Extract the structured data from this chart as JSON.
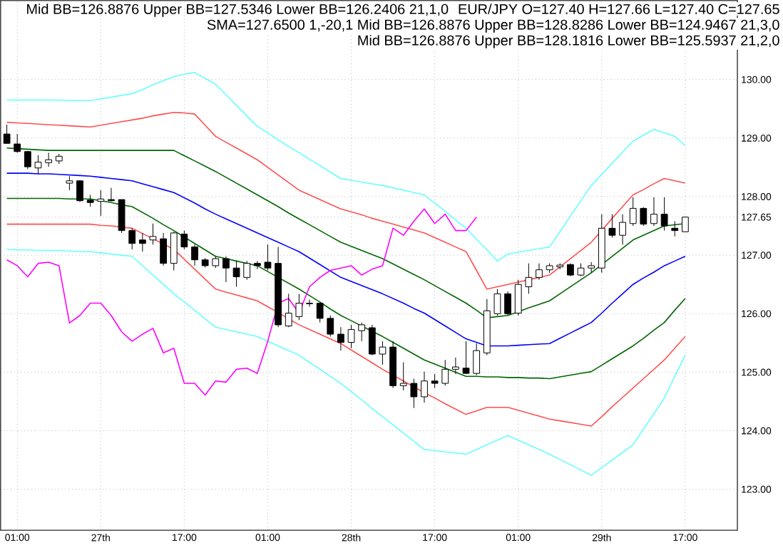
{
  "chart_data": {
    "type": "candlestick",
    "categories": [
      null,
      "01:00",
      null,
      null,
      null,
      null,
      null,
      null,
      null,
      "27th",
      null,
      null,
      null,
      null,
      null,
      null,
      null,
      "17:00",
      null,
      null,
      null,
      null,
      null,
      null,
      null,
      "01:00",
      null,
      null,
      null,
      null,
      null,
      null,
      null,
      "28th",
      null,
      null,
      null,
      null,
      null,
      null,
      null,
      "17:00",
      null,
      null,
      null,
      null,
      null,
      null,
      null,
      "01:00",
      null,
      null,
      null,
      null,
      null,
      null,
      null,
      "29th",
      null,
      null,
      null,
      null,
      null,
      null,
      null,
      "17:00"
    ],
    "ohlc": [
      [
        129.07,
        129.23,
        128.91,
        128.91
      ],
      [
        128.9,
        129.07,
        128.75,
        128.77
      ],
      [
        128.77,
        128.78,
        128.47,
        128.51
      ],
      [
        128.49,
        128.71,
        128.39,
        128.59
      ],
      [
        128.58,
        128.75,
        128.51,
        128.63
      ],
      [
        128.61,
        128.73,
        128.56,
        128.69
      ],
      [
        128.23,
        128.35,
        128.11,
        128.27
      ],
      [
        128.27,
        128.28,
        127.91,
        127.93
      ],
      [
        127.94,
        128.03,
        127.83,
        127.9
      ],
      [
        127.92,
        128.11,
        127.67,
        127.96
      ],
      [
        127.95,
        128.15,
        127.92,
        127.93
      ],
      [
        127.95,
        127.95,
        127.38,
        127.42
      ],
      [
        127.42,
        127.46,
        127.1,
        127.2
      ],
      [
        127.26,
        127.38,
        127.06,
        127.2
      ],
      [
        127.26,
        127.54,
        127.18,
        127.32
      ],
      [
        127.28,
        127.38,
        126.82,
        126.86
      ],
      [
        126.86,
        127.4,
        126.74,
        127.38
      ],
      [
        127.36,
        127.42,
        127.1,
        127.14
      ],
      [
        127.14,
        127.18,
        126.82,
        126.92
      ],
      [
        126.92,
        126.95,
        126.79,
        126.82
      ],
      [
        126.82,
        126.98,
        126.78,
        126.94
      ],
      [
        126.94,
        126.98,
        126.54,
        126.78
      ],
      [
        126.78,
        126.9,
        126.46,
        126.63
      ],
      [
        126.62,
        126.9,
        126.58,
        126.86
      ],
      [
        126.86,
        126.9,
        126.76,
        126.82
      ],
      [
        126.88,
        127.18,
        126.74,
        126.78
      ],
      [
        126.86,
        127.14,
        125.77,
        125.81
      ],
      [
        125.79,
        126.34,
        125.77,
        126.01
      ],
      [
        125.95,
        126.34,
        125.89,
        126.18
      ],
      [
        126.17,
        126.24,
        126.12,
        126.18
      ],
      [
        126.18,
        126.19,
        125.85,
        125.92
      ],
      [
        125.92,
        125.97,
        125.61,
        125.65
      ],
      [
        125.65,
        125.77,
        125.37,
        125.51
      ],
      [
        125.51,
        125.81,
        125.41,
        125.73
      ],
      [
        125.71,
        125.85,
        125.53,
        125.81
      ],
      [
        125.76,
        125.81,
        125.29,
        125.31
      ],
      [
        125.31,
        125.53,
        125.13,
        125.43
      ],
      [
        125.43,
        125.53,
        124.73,
        124.77
      ],
      [
        124.77,
        125.17,
        124.69,
        124.81
      ],
      [
        124.81,
        124.89,
        124.39,
        124.58
      ],
      [
        124.58,
        125.01,
        124.48,
        124.85
      ],
      [
        124.85,
        124.97,
        124.73,
        124.81
      ],
      [
        124.81,
        125.21,
        124.77,
        125.05
      ],
      [
        125.05,
        125.25,
        124.97,
        125.09
      ],
      [
        125.07,
        125.53,
        124.97,
        124.98
      ],
      [
        124.98,
        125.49,
        124.95,
        125.37
      ],
      [
        125.33,
        126.25,
        125.29,
        126.05
      ],
      [
        126.0,
        126.42,
        125.97,
        126.34
      ],
      [
        126.34,
        126.38,
        125.97,
        126.0
      ],
      [
        126.01,
        126.58,
        125.97,
        126.5
      ],
      [
        126.46,
        126.86,
        126.34,
        126.62
      ],
      [
        126.62,
        126.86,
        126.58,
        126.75
      ],
      [
        126.75,
        126.86,
        126.7,
        126.82
      ],
      [
        126.8,
        126.86,
        126.76,
        126.83
      ],
      [
        126.84,
        126.86,
        126.64,
        126.66
      ],
      [
        126.66,
        126.86,
        126.64,
        126.78
      ],
      [
        126.78,
        126.88,
        126.7,
        126.82
      ],
      [
        126.78,
        127.7,
        126.7,
        127.46
      ],
      [
        127.46,
        127.7,
        127.3,
        127.34
      ],
      [
        127.34,
        127.7,
        127.18,
        127.56
      ],
      [
        127.54,
        127.99,
        127.5,
        127.8
      ],
      [
        127.8,
        127.82,
        127.5,
        127.53
      ],
      [
        127.54,
        127.99,
        127.5,
        127.7
      ],
      [
        127.7,
        127.99,
        127.42,
        127.5
      ],
      [
        127.46,
        127.58,
        127.32,
        127.42
      ],
      [
        127.4,
        127.66,
        127.4,
        127.65
      ]
    ],
    "series": [
      {
        "type": "line",
        "color": "#66ffff",
        "values": [
          129.65,
          129.65,
          129.65,
          129.65,
          129.65,
          129.65,
          129.64,
          129.64,
          129.64,
          129.67,
          129.7,
          129.73,
          129.76,
          129.83,
          129.91,
          129.98,
          130.05,
          130.09,
          130.12,
          130.02,
          129.92,
          129.74,
          129.56,
          129.38,
          129.2,
          129.09,
          128.97,
          128.86,
          128.75,
          128.64,
          128.53,
          128.42,
          128.31,
          128.28,
          128.25,
          128.22,
          128.19,
          128.15,
          128.11,
          128.07,
          128.03,
          127.89,
          127.75,
          127.6,
          127.46,
          127.27,
          127.09,
          126.9,
          127.02,
          127.05,
          127.08,
          127.11,
          127.14,
          127.4,
          127.67,
          127.93,
          128.19,
          128.38,
          128.57,
          128.76,
          128.95,
          129.05,
          129.15,
          129.09,
          129.03,
          128.87
        ]
      },
      {
        "type": "line",
        "color": "#ff5050",
        "values": [
          129.27,
          129.26,
          129.25,
          129.24,
          129.23,
          129.22,
          129.21,
          129.2,
          129.19,
          129.22,
          129.25,
          129.28,
          129.31,
          129.34,
          129.38,
          129.41,
          129.44,
          129.43,
          129.41,
          129.22,
          129.03,
          128.93,
          128.83,
          128.73,
          128.63,
          128.5,
          128.37,
          128.24,
          128.11,
          128.03,
          127.95,
          127.87,
          127.79,
          127.74,
          127.69,
          127.63,
          127.58,
          127.53,
          127.48,
          127.43,
          127.38,
          127.3,
          127.22,
          127.14,
          127.06,
          126.74,
          126.42,
          126.46,
          126.5,
          126.54,
          126.58,
          126.62,
          126.66,
          126.8,
          126.94,
          127.08,
          127.22,
          127.42,
          127.63,
          127.83,
          128.03,
          128.12,
          128.22,
          128.31,
          128.27,
          128.23
        ]
      },
      {
        "type": "line",
        "color": "#006600",
        "values": [
          128.83,
          128.82,
          128.81,
          128.8,
          128.79,
          128.79,
          128.79,
          128.79,
          128.79,
          128.79,
          128.79,
          128.79,
          128.79,
          128.79,
          128.79,
          128.79,
          128.79,
          128.7,
          128.61,
          128.52,
          128.43,
          128.33,
          128.23,
          128.13,
          128.03,
          127.93,
          127.83,
          127.72,
          127.62,
          127.52,
          127.42,
          127.32,
          127.22,
          127.15,
          127.08,
          127.01,
          126.94,
          126.85,
          126.76,
          126.67,
          126.58,
          126.48,
          126.38,
          126.28,
          126.18,
          126.06,
          125.93,
          125.95,
          125.97,
          126.03,
          126.1,
          126.16,
          126.22,
          126.34,
          126.46,
          126.58,
          126.7,
          126.84,
          126.98,
          127.12,
          127.26,
          127.34,
          127.42,
          127.5,
          127.52,
          127.54
        ]
      },
      {
        "type": "line",
        "color": "#0000ff",
        "values": [
          128.4,
          128.4,
          128.4,
          128.39,
          128.39,
          128.38,
          128.37,
          128.36,
          128.35,
          128.33,
          128.31,
          128.29,
          128.27,
          128.22,
          128.17,
          128.12,
          128.07,
          127.98,
          127.89,
          127.79,
          127.7,
          127.62,
          127.54,
          127.46,
          127.38,
          127.3,
          127.22,
          127.14,
          127.06,
          126.95,
          126.84,
          126.73,
          126.62,
          126.55,
          126.48,
          126.41,
          126.34,
          126.26,
          126.18,
          126.09,
          126.01,
          125.9,
          125.79,
          125.68,
          125.57,
          125.51,
          125.45,
          125.45,
          125.45,
          125.46,
          125.47,
          125.48,
          125.49,
          125.58,
          125.67,
          125.76,
          125.85,
          126.01,
          126.18,
          126.34,
          126.5,
          126.61,
          126.71,
          126.82,
          126.9,
          126.98
        ]
      },
      {
        "type": "line",
        "color": "#006600",
        "values": [
          127.97,
          127.97,
          127.97,
          127.97,
          127.97,
          127.97,
          127.96,
          127.96,
          127.96,
          127.93,
          127.9,
          127.86,
          127.83,
          127.73,
          127.63,
          127.52,
          127.42,
          127.31,
          127.2,
          127.09,
          126.98,
          126.94,
          126.9,
          126.86,
          126.82,
          126.72,
          126.62,
          126.52,
          126.42,
          126.31,
          126.2,
          126.08,
          125.97,
          125.88,
          125.79,
          125.7,
          125.61,
          125.51,
          125.41,
          125.31,
          125.21,
          125.14,
          125.07,
          125.0,
          124.93,
          124.93,
          124.92,
          124.92,
          124.91,
          124.91,
          124.9,
          124.9,
          124.89,
          124.92,
          124.95,
          124.98,
          125.01,
          125.12,
          125.23,
          125.34,
          125.45,
          125.58,
          125.72,
          125.85,
          126.06,
          126.26
        ]
      },
      {
        "type": "line",
        "color": "#ff5050",
        "values": [
          127.53,
          127.53,
          127.53,
          127.53,
          127.53,
          127.53,
          127.53,
          127.53,
          127.53,
          127.51,
          127.5,
          127.48,
          127.46,
          127.37,
          127.28,
          127.19,
          127.1,
          126.93,
          126.76,
          126.59,
          126.42,
          126.37,
          126.32,
          126.27,
          126.22,
          126.12,
          126.02,
          125.91,
          125.81,
          125.73,
          125.65,
          125.57,
          125.49,
          125.38,
          125.27,
          125.16,
          125.05,
          124.95,
          124.85,
          124.75,
          124.65,
          124.56,
          124.46,
          124.37,
          124.28,
          124.34,
          124.4,
          124.4,
          124.4,
          124.35,
          124.3,
          124.25,
          124.2,
          124.17,
          124.14,
          124.11,
          124.08,
          124.24,
          124.41,
          124.57,
          124.73,
          124.89,
          125.05,
          125.21,
          125.41,
          125.61
        ]
      },
      {
        "type": "line",
        "color": "#66ffff",
        "values": [
          127.1,
          127.09,
          127.09,
          127.08,
          127.08,
          127.08,
          127.07,
          127.06,
          127.06,
          127.04,
          127.02,
          127.0,
          126.98,
          126.82,
          126.66,
          126.5,
          126.34,
          126.2,
          126.06,
          125.91,
          125.77,
          125.73,
          125.69,
          125.65,
          125.61,
          125.53,
          125.45,
          125.37,
          125.29,
          125.17,
          125.05,
          124.93,
          124.81,
          124.67,
          124.53,
          124.38,
          124.24,
          124.1,
          123.96,
          123.82,
          123.68,
          123.66,
          123.64,
          123.62,
          123.6,
          123.68,
          123.76,
          123.84,
          123.92,
          123.84,
          123.76,
          123.68,
          123.6,
          123.51,
          123.42,
          123.33,
          123.24,
          123.37,
          123.5,
          123.63,
          123.76,
          124.03,
          124.29,
          124.56,
          124.93,
          125.29
        ]
      },
      {
        "type": "line",
        "color": "#ff00ff",
        "values": [
          126.92,
          126.82,
          126.63,
          126.86,
          126.88,
          126.82,
          125.84,
          125.97,
          126.18,
          126.18,
          125.97,
          125.69,
          125.53,
          125.65,
          125.75,
          125.33,
          125.41,
          124.81,
          124.81,
          124.61,
          124.85,
          124.83,
          125.05,
          125.07,
          124.98,
          125.53,
          126.18,
          126.26,
          126.01,
          126.46,
          126.62,
          126.74,
          126.78,
          126.82,
          126.66,
          126.76,
          126.82,
          127.46,
          127.34,
          127.58,
          127.79,
          127.54,
          127.7,
          127.42,
          127.42,
          127.65,
          null,
          null,
          null,
          null,
          null,
          null,
          null,
          null,
          null,
          null,
          null,
          null,
          null,
          null,
          null,
          null,
          null,
          null,
          null,
          null
        ]
      }
    ],
    "ylim": [
      122.3,
      131.35
    ],
    "yticks": [
      {
        "value": 123,
        "label": "123.00"
      },
      {
        "value": 124,
        "label": "124.00"
      },
      {
        "value": 125,
        "label": "125.00"
      },
      {
        "value": 126,
        "label": "126.00"
      },
      {
        "value": 127,
        "label": "127.00"
      },
      {
        "value": 127.65,
        "label": "127.65"
      },
      {
        "value": 128,
        "label": "128.00"
      },
      {
        "value": 129,
        "label": "129.00"
      },
      {
        "value": 130,
        "label": "130.00"
      }
    ],
    "grid": true,
    "annotations": [
      "Mid BB=126.8876 Upper BB=127.5346 Lower BB=126.2406 21,1,0",
      "EUR/JPY O=127.40 H=127.66 L=127.40 C=127.65",
      "SMA=127.6500 1,-20,1 Mid BB=126.8876 Upper BB=128.8286 Lower BB=124.9467 21,3,0",
      "Mid BB=126.8876 Upper BB=128.1816 Lower BB=125.5937 21,2,0"
    ]
  }
}
